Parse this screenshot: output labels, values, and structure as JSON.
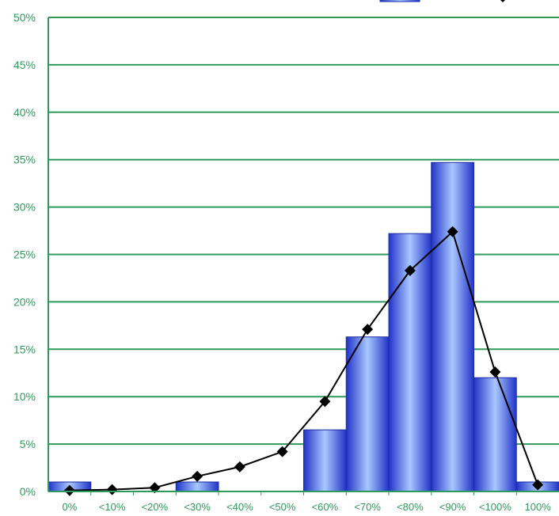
{
  "chart_data": {
    "type": "bar",
    "title": "",
    "categories": [
      "0%",
      "<10%",
      "<20%",
      "<30%",
      "<40%",
      "<50%",
      "<60%",
      "<70%",
      "<80%",
      "<90%",
      "<100%",
      "100%"
    ],
    "series": [
      {
        "type": "bar",
        "values": [
          1.0,
          0,
          0,
          1.0,
          0,
          0,
          6.5,
          16.3,
          27.2,
          34.7,
          12.0,
          1.0
        ]
      },
      {
        "type": "line",
        "values": [
          0.1,
          0.2,
          0.4,
          1.6,
          2.6,
          4.2,
          9.5,
          17.1,
          23.3,
          27.4,
          12.6,
          0.7
        ]
      }
    ],
    "ylim": [
      0,
      50
    ],
    "yticks": [
      "0%",
      "5%",
      "10%",
      "15%",
      "20%",
      "25%",
      "30%",
      "35%",
      "40%",
      "45%",
      "50%"
    ],
    "grid": true,
    "legend_position": "top-right",
    "colors": {
      "grid": "#2f9a5c",
      "text": "#2f9a5c",
      "bar": "#6f8ff5",
      "bar_edge": "#1a2ea0",
      "line": "#000000"
    }
  }
}
